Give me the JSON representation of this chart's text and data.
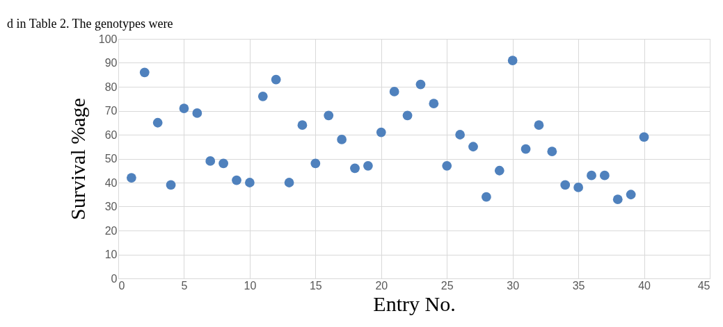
{
  "chart_data": {
    "type": "scatter",
    "xlabel": "Entry No.",
    "ylabel": "Survival %age",
    "annotations": [
      "d in Table 2. The genotypes were"
    ],
    "x": [
      1,
      2,
      3,
      4,
      5,
      6,
      7,
      8,
      9,
      10,
      11,
      12,
      13,
      14,
      15,
      16,
      17,
      18,
      19,
      20,
      21,
      22,
      23,
      24,
      25,
      26,
      27,
      28,
      29,
      30,
      31,
      32,
      33,
      34,
      35,
      36,
      37,
      38,
      39,
      40
    ],
    "series": [
      {
        "color": "#4f81bd",
        "values": [
          42,
          86,
          65,
          39,
          71,
          69,
          49,
          48,
          41,
          40,
          76,
          83,
          40,
          64,
          48,
          68,
          58,
          46,
          47,
          61,
          78,
          68,
          81,
          73,
          47,
          60,
          55,
          34,
          45,
          91,
          54,
          64,
          53,
          39,
          38,
          43,
          43,
          33,
          35,
          59
        ]
      }
    ],
    "xlim": [
      0,
      45
    ],
    "xticks": [
      0,
      5,
      10,
      15,
      20,
      25,
      30,
      35,
      40,
      45
    ],
    "ylim": [
      0,
      100
    ],
    "yticks": [
      0,
      10,
      20,
      30,
      40,
      50,
      60,
      70,
      80,
      90,
      100
    ],
    "grid": true,
    "marker": "circle",
    "legend": false
  }
}
